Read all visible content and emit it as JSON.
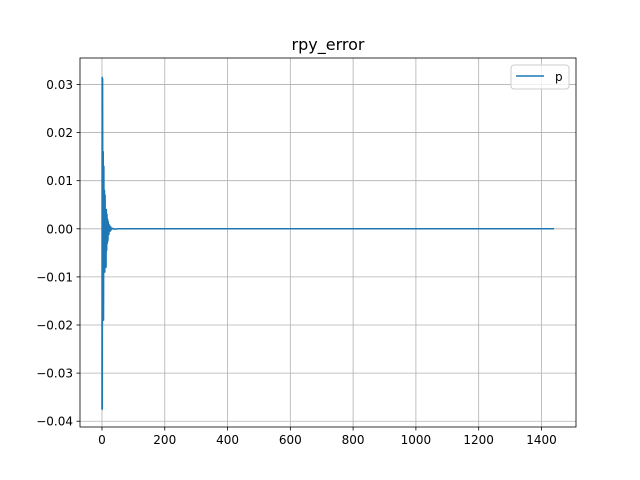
{
  "chart_data": {
    "type": "line",
    "title": "rpy_error",
    "xlabel": "",
    "ylabel": "",
    "xlim": [
      -70,
      1510
    ],
    "ylim": [
      -0.0412,
      0.0355
    ],
    "grid": true,
    "legend": {
      "placement": "top-right"
    },
    "xticks": [
      0,
      200,
      400,
      600,
      800,
      1000,
      1200,
      1400
    ],
    "yticks": [
      -0.04,
      -0.03,
      -0.02,
      -0.01,
      0.0,
      0.01,
      0.02,
      0.03
    ],
    "ytick_labels": [
      "−0.04",
      "−0.03",
      "−0.02",
      "−0.01",
      "0.00",
      "0.01",
      "0.02",
      "0.03"
    ],
    "series": [
      {
        "name": "p",
        "color": "#1f77b4",
        "x": [
          0,
          0.5,
          1,
          2,
          3,
          4,
          5,
          6,
          7,
          8,
          9,
          10,
          11,
          12,
          13,
          14,
          15,
          16,
          17,
          18,
          19,
          20,
          22,
          24,
          26,
          28,
          30,
          35,
          40,
          50,
          60,
          80,
          100,
          200,
          400,
          600,
          800,
          1000,
          1200,
          1440
        ],
        "y": [
          -0.0375,
          0.0315,
          -0.0375,
          0.0312,
          -0.019,
          0.016,
          -0.019,
          0.013,
          -0.009,
          0.008,
          -0.009,
          0.007,
          -0.006,
          0.004,
          -0.008,
          0.004,
          -0.0045,
          0.003,
          -0.003,
          0.002,
          -0.0025,
          0.0015,
          -0.0012,
          0.0008,
          -0.0005,
          0.0004,
          -0.0002,
          0.0001,
          -0.0001,
          0.0,
          0.0,
          0.0,
          0.0,
          0.0,
          0.0,
          0.0,
          0.0,
          0.0,
          0.0,
          0.0
        ]
      }
    ]
  }
}
